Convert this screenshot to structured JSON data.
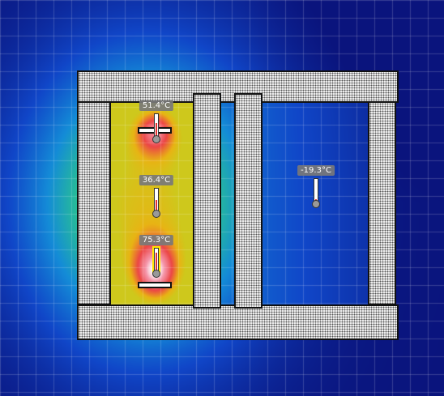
{
  "heat_sources": [
    {
      "name": "heater-upper",
      "level": 1.0
    },
    {
      "name": "heater-lower",
      "level": 1.0
    }
  ],
  "thermometers": [
    {
      "id": "t1",
      "reading": "51.4°C",
      "fill_fraction": 0.62
    },
    {
      "id": "t2",
      "reading": "36.4°C",
      "fill_fraction": 0.5
    },
    {
      "id": "t3",
      "reading": "75.3°C",
      "fill_fraction": 0.82,
      "selected": true
    },
    {
      "id": "t4",
      "reading": "-19.3°C",
      "fill_fraction": 0.1
    }
  ],
  "colors": {
    "background_cold": "#0a1a80",
    "grid": "#ffffff",
    "wall_fill": "#f4f4f4",
    "selection_outline": "#ffe600",
    "thermometer_fill": "#e03030"
  }
}
